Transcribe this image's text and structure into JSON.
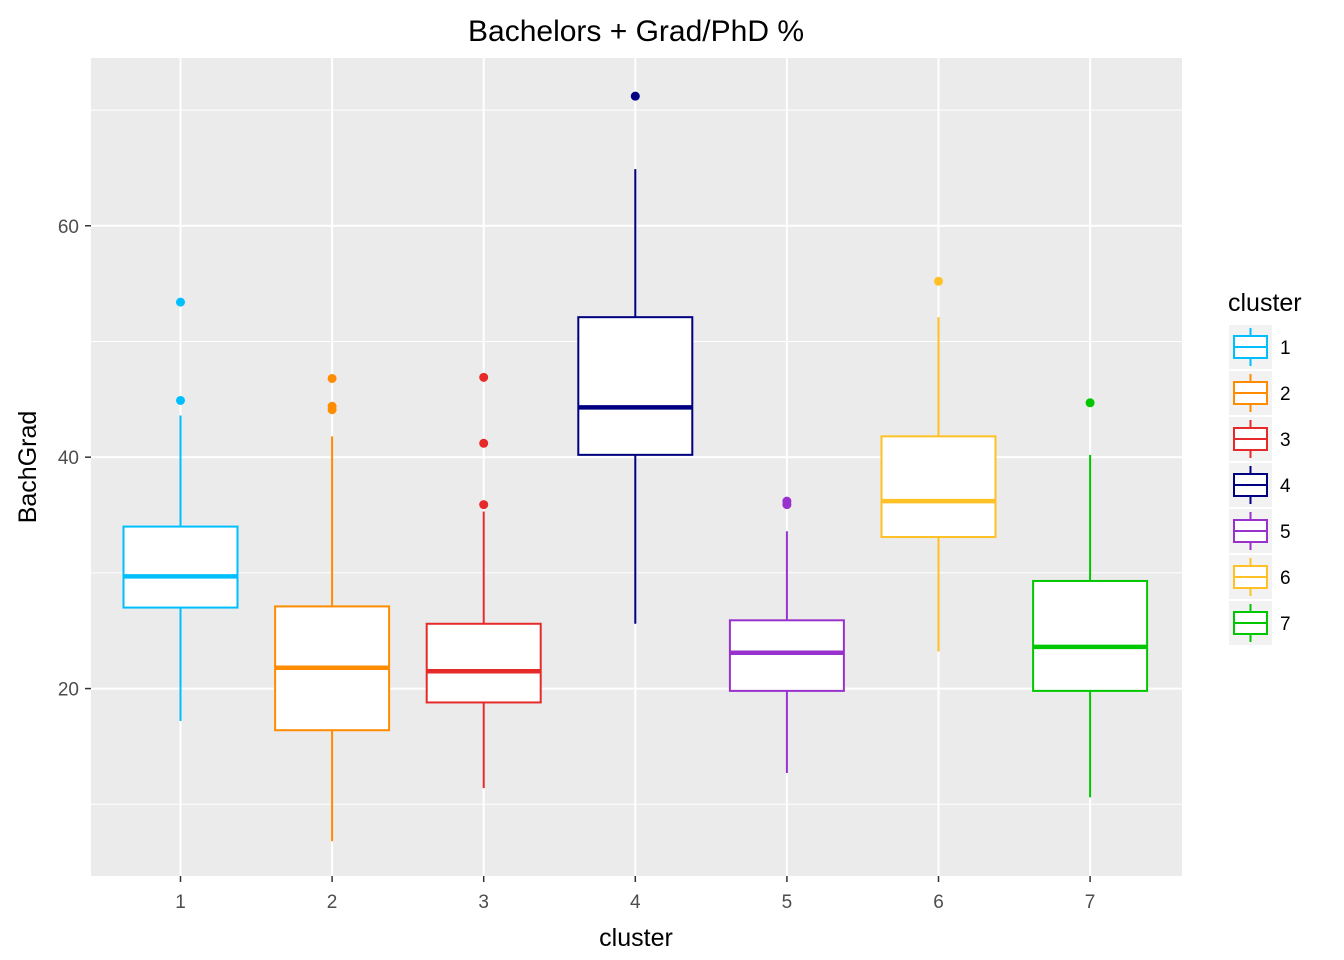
{
  "chart_data": {
    "type": "boxplot",
    "title": "Bachelors + Grad/PhD %",
    "xlabel": "cluster",
    "ylabel": "BachGrad",
    "categories": [
      "1",
      "2",
      "3",
      "4",
      "5",
      "6",
      "7"
    ],
    "y_ticks": [
      20,
      40,
      60
    ],
    "y_tick_labels": [
      "20",
      "40",
      "60"
    ],
    "ylim": [
      3.8,
      74.5
    ],
    "grid": true,
    "legend": {
      "title": "cluster",
      "position": "right"
    },
    "series": [
      {
        "name": "1",
        "color": "#00BFFF",
        "whisker_low": 17.2,
        "q1": 27.0,
        "median": 29.7,
        "q3": 34.0,
        "whisker_high": 43.6,
        "outliers": [
          44.9,
          53.4
        ]
      },
      {
        "name": "2",
        "color": "#FF8C00",
        "whisker_low": 6.8,
        "q1": 16.4,
        "median": 21.8,
        "q3": 27.1,
        "whisker_high": 41.8,
        "outliers": [
          44.1,
          44.4,
          46.8
        ]
      },
      {
        "name": "3",
        "color": "#E62A2A",
        "whisker_low": 11.4,
        "q1": 18.8,
        "median": 21.5,
        "q3": 25.6,
        "whisker_high": 35.3,
        "outliers": [
          35.9,
          41.2,
          46.9
        ]
      },
      {
        "name": "4",
        "color": "#000080",
        "whisker_low": 25.6,
        "q1": 40.2,
        "median": 44.3,
        "q3": 52.1,
        "whisker_high": 64.9,
        "outliers": [
          71.2
        ]
      },
      {
        "name": "5",
        "color": "#9932CC",
        "whisker_low": 12.7,
        "q1": 19.8,
        "median": 23.1,
        "q3": 25.9,
        "whisker_high": 33.6,
        "outliers": [
          35.9,
          36.2
        ]
      },
      {
        "name": "6",
        "color": "#FFC125",
        "whisker_low": 23.2,
        "q1": 33.1,
        "median": 36.2,
        "q3": 41.8,
        "whisker_high": 52.1,
        "outliers": [
          55.2
        ]
      },
      {
        "name": "7",
        "color": "#00C800",
        "whisker_low": 10.6,
        "q1": 19.8,
        "median": 23.6,
        "q3": 29.3,
        "whisker_high": 40.2,
        "outliers": [
          44.7
        ]
      }
    ]
  }
}
